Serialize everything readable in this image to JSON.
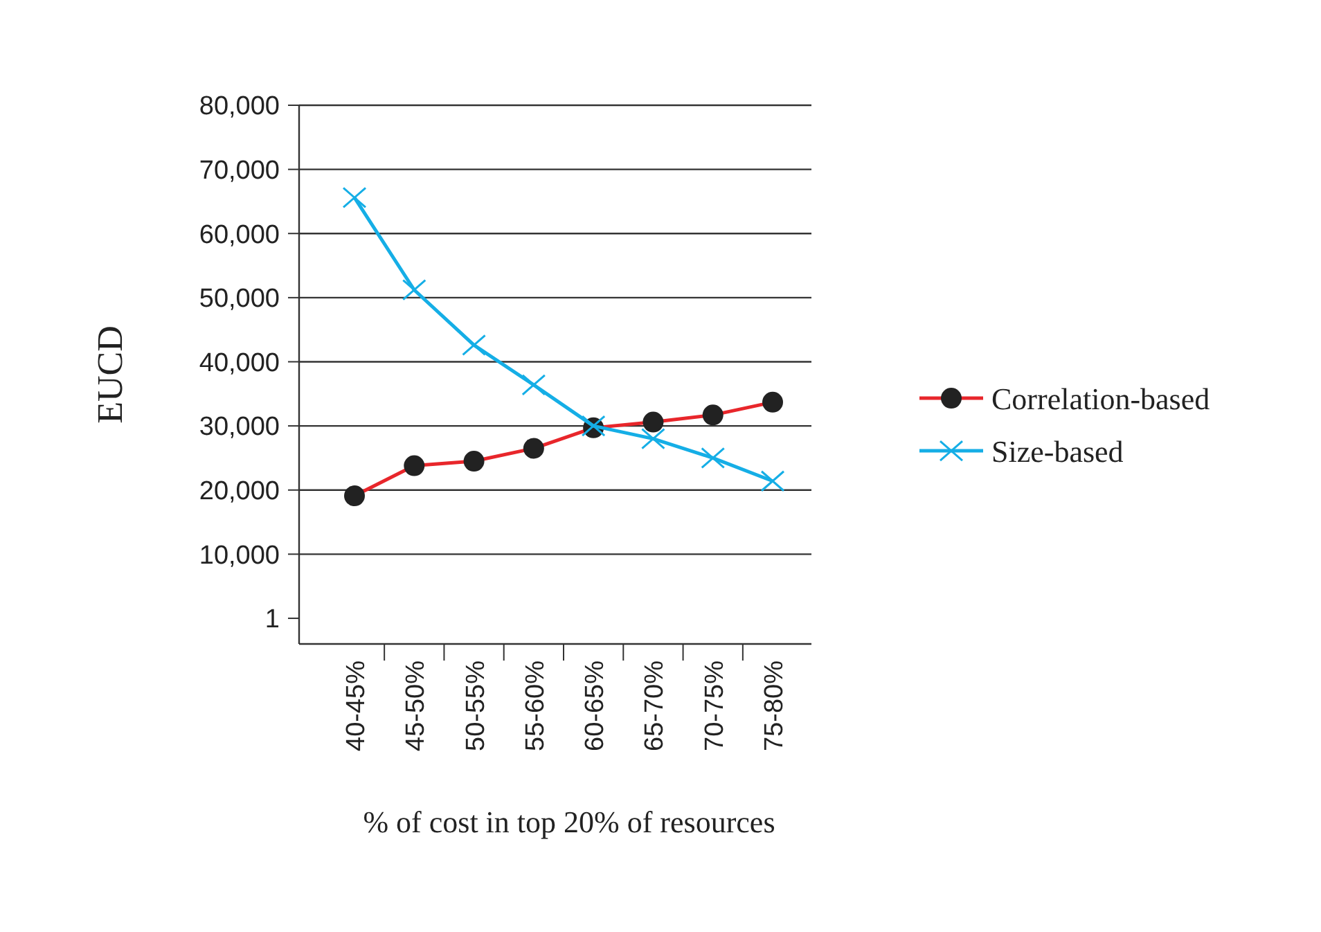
{
  "chart_data": {
    "type": "line",
    "xlabel": "% of cost in top 20% of resources",
    "ylabel": "EUCD",
    "categories": [
      "40-45%",
      "45-50%",
      "50-55%",
      "55-60%",
      "60-65%",
      "65-70%",
      "70-75%",
      "75-80%"
    ],
    "series": [
      {
        "name": "Correlation-based",
        "color": "#e8262b",
        "marker": "circle",
        "values": [
          19100,
          23800,
          24500,
          26500,
          29700,
          30600,
          31700,
          33700
        ]
      },
      {
        "name": "Size-based",
        "color": "#15aee6",
        "marker": "cross",
        "values": [
          65600,
          51200,
          42600,
          36400,
          30000,
          28000,
          25000,
          21400
        ]
      }
    ],
    "ylim": [
      -4000,
      80000
    ],
    "yticks": [
      {
        "value": 1,
        "label": "1"
      },
      {
        "value": 10000,
        "label": "10,000"
      },
      {
        "value": 20000,
        "label": "20,000"
      },
      {
        "value": 30000,
        "label": "30,000"
      },
      {
        "value": 40000,
        "label": "40,000"
      },
      {
        "value": 50000,
        "label": "50,000"
      },
      {
        "value": 60000,
        "label": "60,000"
      },
      {
        "value": 70000,
        "label": "70,000"
      },
      {
        "value": 80000,
        "label": "80,000"
      }
    ],
    "grid": "y",
    "legend": "right"
  }
}
